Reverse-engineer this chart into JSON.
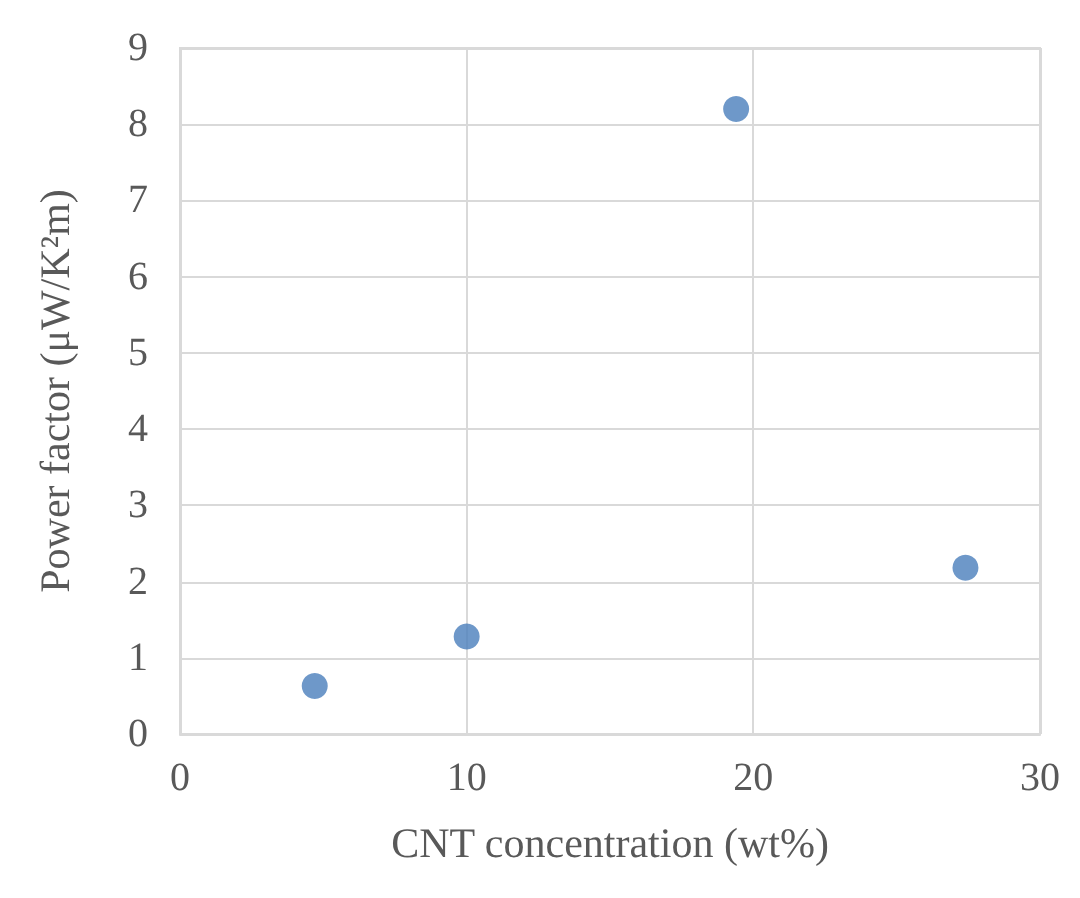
{
  "chart_data": {
    "type": "scatter",
    "xlabel": "CNT concentration (wt%)",
    "ylabel": "Power factor (μW/K²m)",
    "x": [
      4.7,
      10.0,
      19.4,
      27.4
    ],
    "series": [
      {
        "color": "#4a7ebb",
        "values": [
          0.63,
          1.28,
          8.2,
          2.18
        ]
      }
    ],
    "xlim": [
      0,
      30
    ],
    "xticks": [
      0,
      10,
      20,
      30
    ],
    "ylim": [
      0,
      9
    ],
    "yticks": [
      0,
      1,
      2,
      3,
      4,
      5,
      6,
      7,
      8,
      9
    ],
    "grid": true,
    "marker": "circle"
  }
}
